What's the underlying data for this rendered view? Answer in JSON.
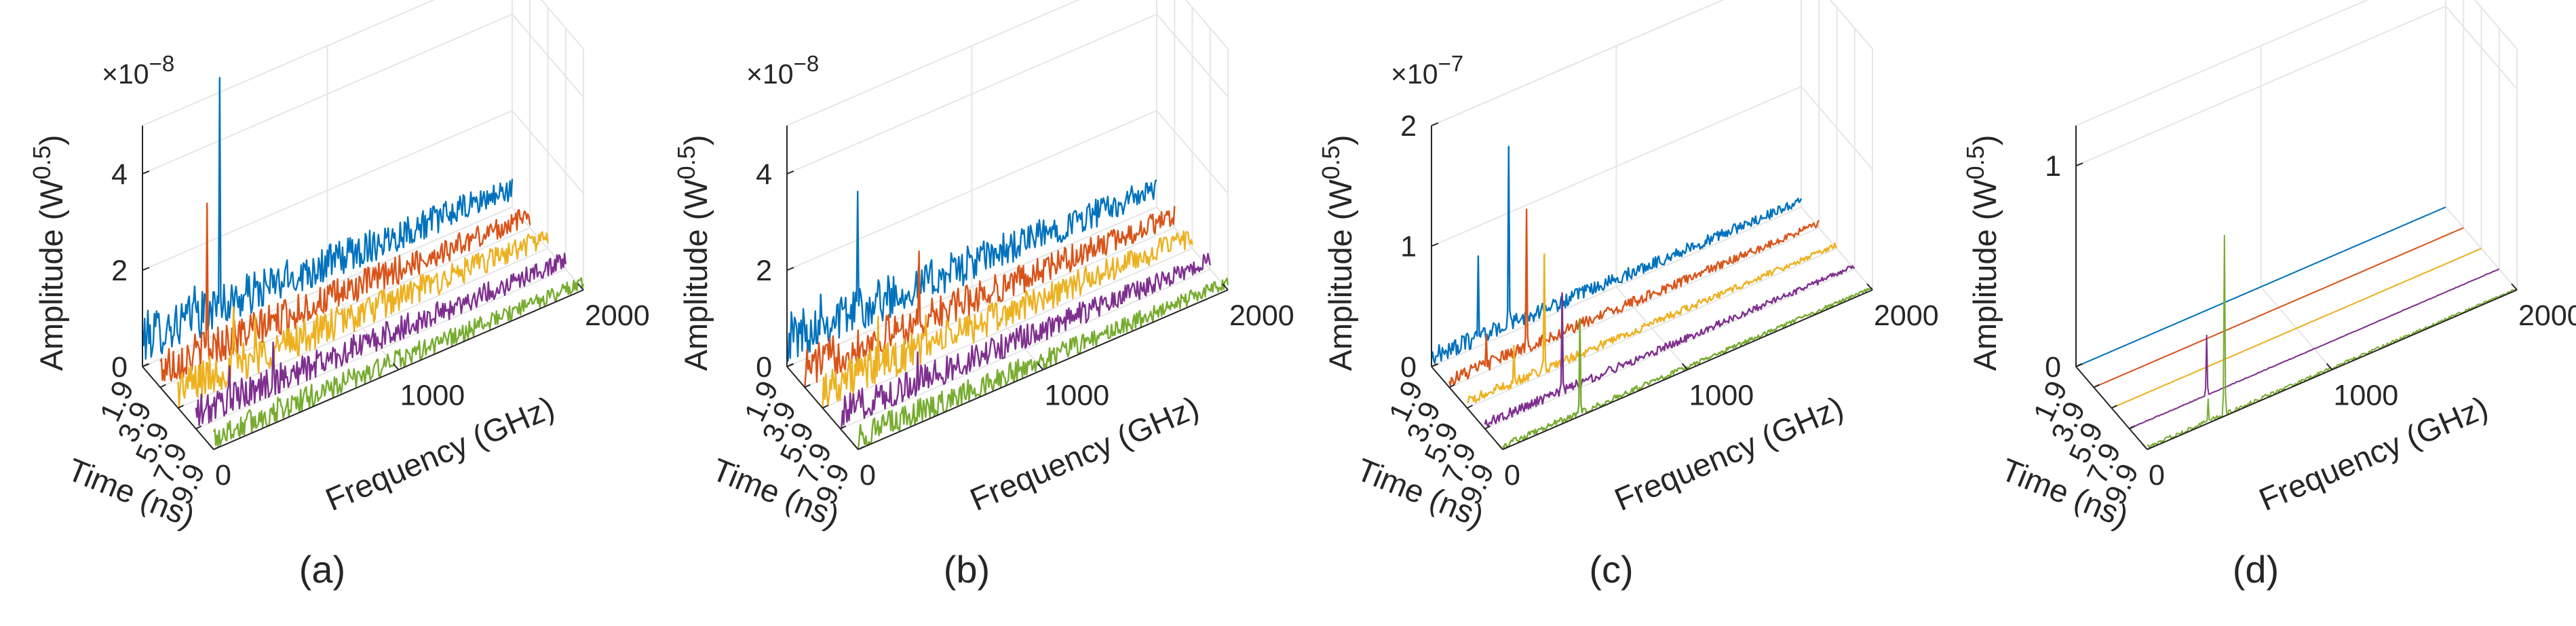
{
  "figure": {
    "series_colors": [
      "#0072BD",
      "#D95319",
      "#EDB120",
      "#7E2F8E",
      "#77AC30"
    ],
    "gridline_color": "#e6e6e6",
    "axis_color": "#262626"
  },
  "chart_data": [
    {
      "type": "3d-line-waterfall",
      "panel_label": "(a)",
      "xlabel": "Time (ns)",
      "ylabel": "Frequency (GHz)",
      "zlabel_base": "Amplitude (W",
      "zlabel_sup": "0.5",
      "zlabel_close": ")",
      "exponent_base": "×10",
      "exponent_power": "−8",
      "time_ticks": [
        "1.9",
        "3.9",
        "5.9",
        "7.9",
        "9.9"
      ],
      "freq_ticks": [
        "0",
        "1000",
        "2000"
      ],
      "z_ticks": [
        "0",
        "2",
        "4"
      ],
      "z_range": [
        0,
        5
      ],
      "freq_range": [
        0,
        2000
      ],
      "series": [
        {
          "name": "1.9 ns",
          "noise_floor": 0.6,
          "noise_amp": 0.35,
          "peaks": [
            {
              "freq": 420,
              "amp": 5.3
            },
            {
              "freq": 280,
              "amp": 1.2
            }
          ]
        },
        {
          "name": "3.9 ns",
          "noise_floor": 0.4,
          "noise_amp": 0.3,
          "peaks": [
            {
              "freq": 250,
              "amp": 3.4
            }
          ]
        },
        {
          "name": "5.9 ns",
          "noise_floor": 0.4,
          "noise_amp": 0.3,
          "peaks": [
            {
              "freq": 300,
              "amp": 1.6
            },
            {
              "freq": 420,
              "amp": 1.2
            }
          ]
        },
        {
          "name": "7.9 ns",
          "noise_floor": 0.3,
          "noise_amp": 0.25,
          "peaks": [
            {
              "freq": 180,
              "amp": 1.0
            },
            {
              "freq": 420,
              "amp": 1.1
            }
          ]
        },
        {
          "name": "9.9 ns",
          "noise_floor": 0.25,
          "noise_amp": 0.2,
          "peaks": []
        }
      ]
    },
    {
      "type": "3d-line-waterfall",
      "panel_label": "(b)",
      "xlabel": "Time (ns)",
      "ylabel": "Frequency (GHz)",
      "zlabel_base": "Amplitude (W",
      "zlabel_sup": "0.5",
      "zlabel_close": ")",
      "exponent_base": "×10",
      "exponent_power": "−8",
      "time_ticks": [
        "1.9",
        "3.9",
        "5.9",
        "7.9",
        "9.9"
      ],
      "freq_ticks": [
        "0",
        "1000",
        "2000"
      ],
      "z_ticks": [
        "0",
        "2",
        "4"
      ],
      "z_range": [
        0,
        5
      ],
      "freq_range": [
        0,
        2000
      ],
      "series": [
        {
          "name": "1.9 ns",
          "noise_floor": 0.6,
          "noise_amp": 0.35,
          "peaks": [
            {
              "freq": 380,
              "amp": 3.0
            },
            {
              "freq": 180,
              "amp": 1.2
            }
          ]
        },
        {
          "name": "3.9 ns",
          "noise_floor": 0.4,
          "noise_amp": 0.3,
          "peaks": [
            {
              "freq": 620,
              "amp": 1.8
            }
          ]
        },
        {
          "name": "5.9 ns",
          "noise_floor": 0.4,
          "noise_amp": 0.3,
          "peaks": [
            {
              "freq": 300,
              "amp": 1.4
            },
            {
              "freq": 560,
              "amp": 1.0
            }
          ]
        },
        {
          "name": "7.9 ns",
          "noise_floor": 0.3,
          "noise_amp": 0.25,
          "peaks": [
            {
              "freq": 420,
              "amp": 0.9
            }
          ]
        },
        {
          "name": "9.9 ns",
          "noise_floor": 0.25,
          "noise_amp": 0.2,
          "peaks": []
        }
      ]
    },
    {
      "type": "3d-line-waterfall",
      "panel_label": "(c)",
      "xlabel": "Time (ns)",
      "ylabel": "Frequency (GHz)",
      "zlabel_base": "Amplitude (W",
      "zlabel_sup": "0.5",
      "zlabel_close": ")",
      "exponent_base": "×10",
      "exponent_power": "−7",
      "time_ticks": [
        "1.9",
        "3.9",
        "5.9",
        "7.9",
        "9.9"
      ],
      "freq_ticks": [
        "0",
        "1000",
        "2000"
      ],
      "z_ticks": [
        "0",
        "1",
        "2"
      ],
      "z_range": [
        0,
        2
      ],
      "freq_range": [
        0,
        2000
      ],
      "series": [
        {
          "name": "1.9 ns",
          "noise_floor": 0.08,
          "noise_amp": 0.05,
          "peaks": [
            {
              "freq": 250,
              "amp": 0.75
            },
            {
              "freq": 420,
              "amp": 1.55
            }
          ]
        },
        {
          "name": "3.9 ns",
          "noise_floor": 0.06,
          "noise_amp": 0.04,
          "peaks": [
            {
              "freq": 420,
              "amp": 1.2
            },
            {
              "freq": 200,
              "amp": 0.3
            }
          ]
        },
        {
          "name": "5.9 ns",
          "noise_floor": 0.05,
          "noise_amp": 0.03,
          "peaks": [
            {
              "freq": 420,
              "amp": 1.0
            },
            {
              "freq": 250,
              "amp": 0.35
            }
          ]
        },
        {
          "name": "7.9 ns",
          "noise_floor": 0.04,
          "noise_amp": 0.03,
          "peaks": [
            {
              "freq": 420,
              "amp": 0.85
            }
          ]
        },
        {
          "name": "9.9 ns",
          "noise_floor": 0.03,
          "noise_amp": 0.02,
          "peaks": [
            {
              "freq": 420,
              "amp": 0.8
            }
          ]
        }
      ]
    },
    {
      "type": "3d-line-waterfall",
      "panel_label": "(d)",
      "xlabel": "Time (ns)",
      "ylabel": "Frequency (GHz)",
      "zlabel_base": "Amplitude (W",
      "zlabel_sup": "0.5",
      "zlabel_close": ")",
      "exponent_base": "",
      "exponent_power": "",
      "time_ticks": [
        "1.9",
        "3.9",
        "5.9",
        "7.9",
        "9.9"
      ],
      "freq_ticks": [
        "0",
        "1000",
        "2000"
      ],
      "z_ticks": [
        "0",
        "1"
      ],
      "z_range": [
        0,
        1.2
      ],
      "freq_range": [
        0,
        2000
      ],
      "series": [
        {
          "name": "1.9 ns",
          "noise_floor": 0.0,
          "noise_amp": 0.0,
          "peaks": []
        },
        {
          "name": "3.9 ns",
          "noise_floor": 0.0,
          "noise_amp": 0.0,
          "peaks": []
        },
        {
          "name": "5.9 ns",
          "noise_floor": 0.0,
          "noise_amp": 0.0,
          "peaks": []
        },
        {
          "name": "7.9 ns",
          "noise_floor": 0.0,
          "noise_amp": 0.003,
          "peaks": [
            {
              "freq": 420,
              "amp": 0.3
            }
          ]
        },
        {
          "name": "9.9 ns",
          "noise_floor": 0.01,
          "noise_amp": 0.008,
          "peaks": [
            {
              "freq": 420,
              "amp": 0.9
            },
            {
              "freq": 330,
              "amp": 0.12
            }
          ]
        }
      ]
    }
  ]
}
